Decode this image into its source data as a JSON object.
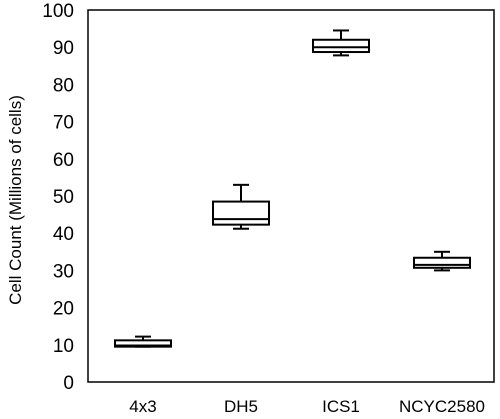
{
  "chart_data": {
    "type": "box",
    "title": "",
    "xlabel": "",
    "ylabel": "Cell Count (Millions of cells)",
    "ylim": [
      0,
      100
    ],
    "yticks": [
      0,
      10,
      20,
      30,
      40,
      50,
      60,
      70,
      80,
      90,
      100
    ],
    "grid": false,
    "legend": "none",
    "categories": [
      "4x3",
      "DH5",
      "ICS1",
      "NCYC2580"
    ],
    "boxes": [
      {
        "category": "4x3",
        "min": 9.5,
        "q1": 9.5,
        "median": 9.8,
        "q3": 11.2,
        "max": 12.2
      },
      {
        "category": "DH5",
        "min": 41.2,
        "q1": 42.3,
        "median": 43.8,
        "q3": 48.5,
        "max": 53.0
      },
      {
        "category": "ICS1",
        "min": 87.8,
        "q1": 88.7,
        "median": 90.0,
        "q3": 92.0,
        "max": 94.5
      },
      {
        "category": "NCYC2580",
        "min": 30.0,
        "q1": 30.7,
        "median": 31.5,
        "q3": 33.4,
        "max": 35.0
      }
    ],
    "colors": {
      "stroke": "#000000",
      "fill": "#ffffff"
    }
  }
}
